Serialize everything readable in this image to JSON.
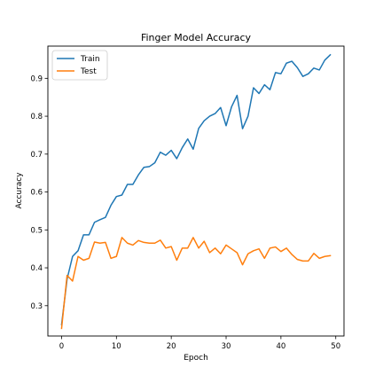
{
  "chart_data": {
    "type": "line",
    "title": "Finger Model Accuracy",
    "xlabel": "Epoch",
    "ylabel": "Accuracy",
    "xlim": [
      -2.5,
      51.5
    ],
    "ylim": [
      0.22,
      0.985
    ],
    "xticks": [
      0,
      10,
      20,
      30,
      40,
      50
    ],
    "yticks": [
      0.3,
      0.4,
      0.5,
      0.6,
      0.7,
      0.8,
      0.9
    ],
    "grid": false,
    "legend_position": "top-left",
    "x": [
      0,
      1,
      2,
      3,
      4,
      5,
      6,
      7,
      8,
      9,
      10,
      11,
      12,
      13,
      14,
      15,
      16,
      17,
      18,
      19,
      20,
      21,
      22,
      23,
      24,
      25,
      26,
      27,
      28,
      29,
      30,
      31,
      32,
      33,
      34,
      35,
      36,
      37,
      38,
      39,
      40,
      41,
      42,
      43,
      44,
      45,
      46,
      47,
      48,
      49
    ],
    "series": [
      {
        "name": "Train",
        "color": "#1f77b4",
        "values": [
          0.25,
          0.37,
          0.43,
          0.445,
          0.487,
          0.487,
          0.52,
          0.527,
          0.533,
          0.565,
          0.588,
          0.592,
          0.62,
          0.62,
          0.645,
          0.665,
          0.667,
          0.677,
          0.705,
          0.697,
          0.71,
          0.688,
          0.717,
          0.74,
          0.713,
          0.768,
          0.788,
          0.8,
          0.807,
          0.823,
          0.775,
          0.825,
          0.855,
          0.767,
          0.8,
          0.875,
          0.86,
          0.883,
          0.87,
          0.915,
          0.912,
          0.94,
          0.945,
          0.928,
          0.905,
          0.912,
          0.927,
          0.922,
          0.948,
          0.962
        ]
      },
      {
        "name": "Test",
        "color": "#ff7f0e",
        "values": [
          0.24,
          0.38,
          0.365,
          0.43,
          0.42,
          0.425,
          0.468,
          0.465,
          0.467,
          0.425,
          0.43,
          0.48,
          0.465,
          0.46,
          0.472,
          0.467,
          0.465,
          0.465,
          0.473,
          0.452,
          0.456,
          0.42,
          0.452,
          0.452,
          0.48,
          0.452,
          0.47,
          0.44,
          0.452,
          0.437,
          0.46,
          0.45,
          0.44,
          0.408,
          0.437,
          0.445,
          0.45,
          0.425,
          0.452,
          0.455,
          0.443,
          0.452,
          0.435,
          0.422,
          0.418,
          0.418,
          0.438,
          0.425,
          0.43,
          0.432
        ]
      }
    ]
  }
}
